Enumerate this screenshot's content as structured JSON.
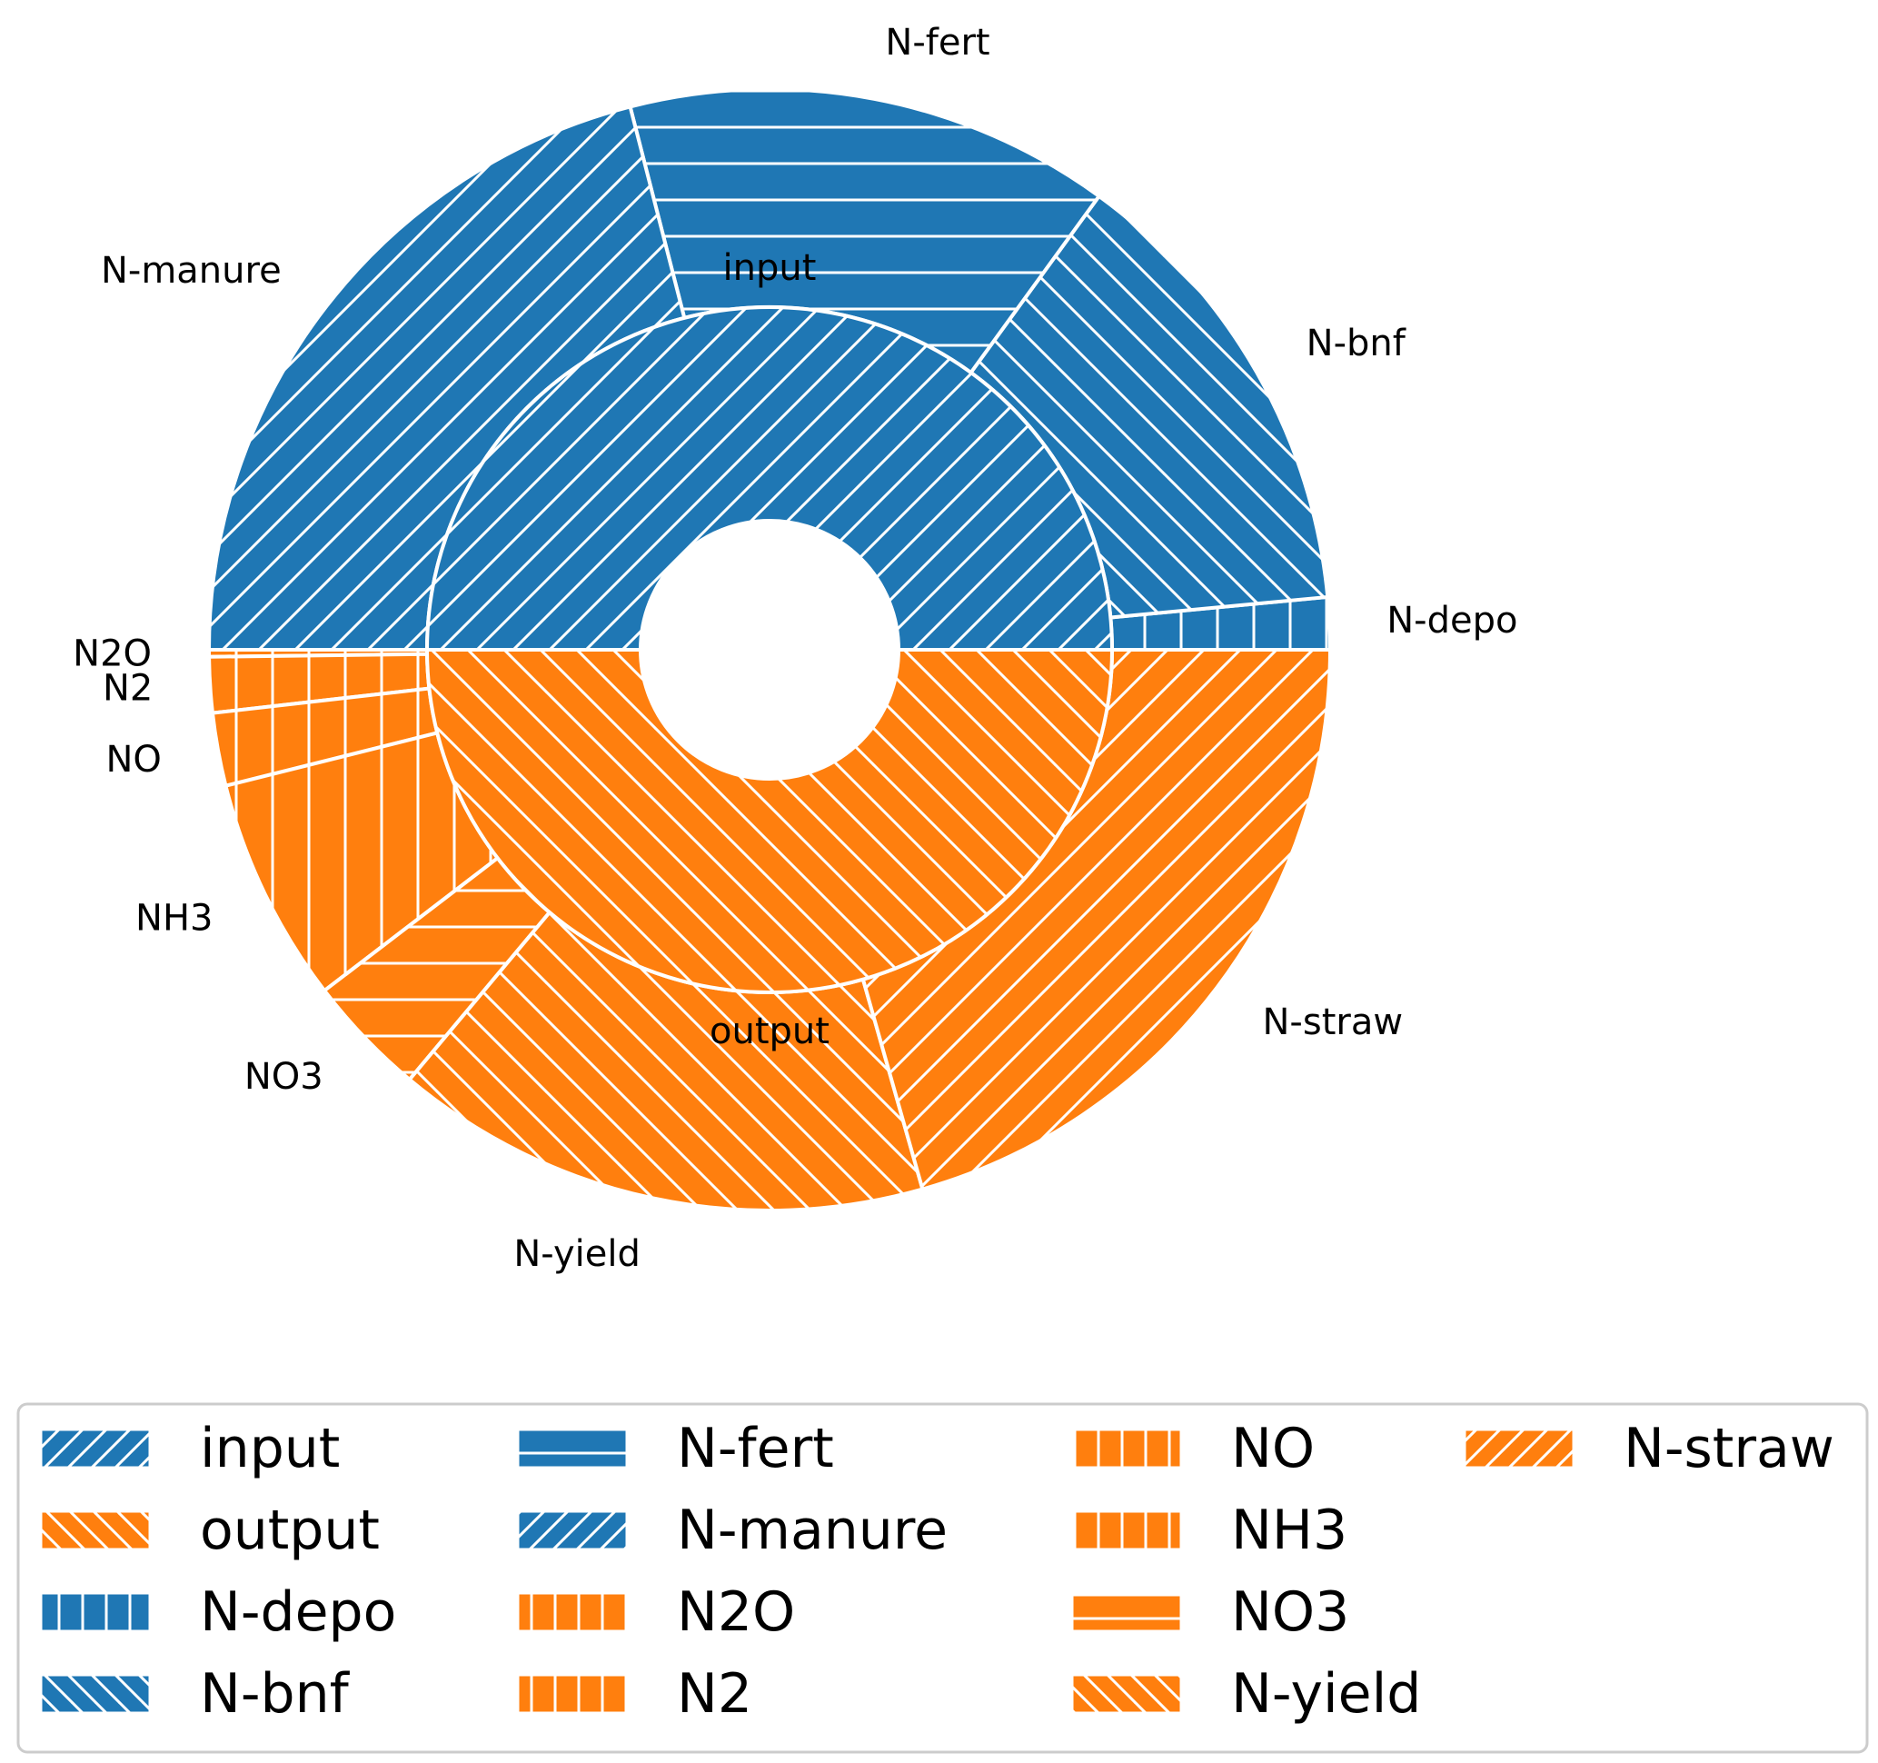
{
  "chart_data": {
    "type": "pie",
    "subtype": "nested-donut",
    "title": "",
    "colors": {
      "input": "#1f77b4",
      "output": "#ff7f0e",
      "edge": "#ffffff",
      "legend_frame": "#cccccc"
    },
    "start_angle": "0 degrees (3 o'clock), counter-clockwise",
    "inner_ring": {
      "labels": [
        "input",
        "output"
      ],
      "values": [
        50.0,
        50.0
      ],
      "groups": [
        "input",
        "output"
      ],
      "hatch": [
        "/",
        "\\"
      ]
    },
    "outer_ring": {
      "labels": [
        "N-depo",
        "N-bnf",
        "N-fert",
        "N-manure",
        "N2O",
        "N2",
        "NO",
        "NH3",
        "NO3",
        "N-yield",
        "N-straw"
      ],
      "values": [
        1.5,
        13.5,
        14.0,
        21.0,
        0.2,
        1.6,
        2.1,
        6.5,
        3.5,
        15.5,
        20.6
      ],
      "groups": [
        "input",
        "input",
        "input",
        "input",
        "output",
        "output",
        "output",
        "output",
        "output",
        "output",
        "output"
      ],
      "hatch": [
        "|",
        "\\",
        "-",
        "/",
        "|",
        "|",
        "|",
        "|",
        "-",
        "\\",
        "/"
      ]
    },
    "legend": {
      "placement": "bottom-center",
      "columns": 4,
      "entries": [
        {
          "label": "input",
          "group": "input",
          "hatch": "/"
        },
        {
          "label": "output",
          "group": "output",
          "hatch": "\\"
        },
        {
          "label": "N-depo",
          "group": "input",
          "hatch": "|"
        },
        {
          "label": "N-bnf",
          "group": "input",
          "hatch": "\\"
        },
        {
          "label": "N-fert",
          "group": "input",
          "hatch": "-"
        },
        {
          "label": "N-manure",
          "group": "input",
          "hatch": "/"
        },
        {
          "label": "N2O",
          "group": "output",
          "hatch": "|"
        },
        {
          "label": "N2",
          "group": "output",
          "hatch": "|"
        },
        {
          "label": "NO",
          "group": "output",
          "hatch": "|"
        },
        {
          "label": "NH3",
          "group": "output",
          "hatch": "|"
        },
        {
          "label": "NO3",
          "group": "output",
          "hatch": "-"
        },
        {
          "label": "N-yield",
          "group": "output",
          "hatch": "\\"
        },
        {
          "label": "N-straw",
          "group": "output",
          "hatch": "/"
        }
      ]
    }
  }
}
